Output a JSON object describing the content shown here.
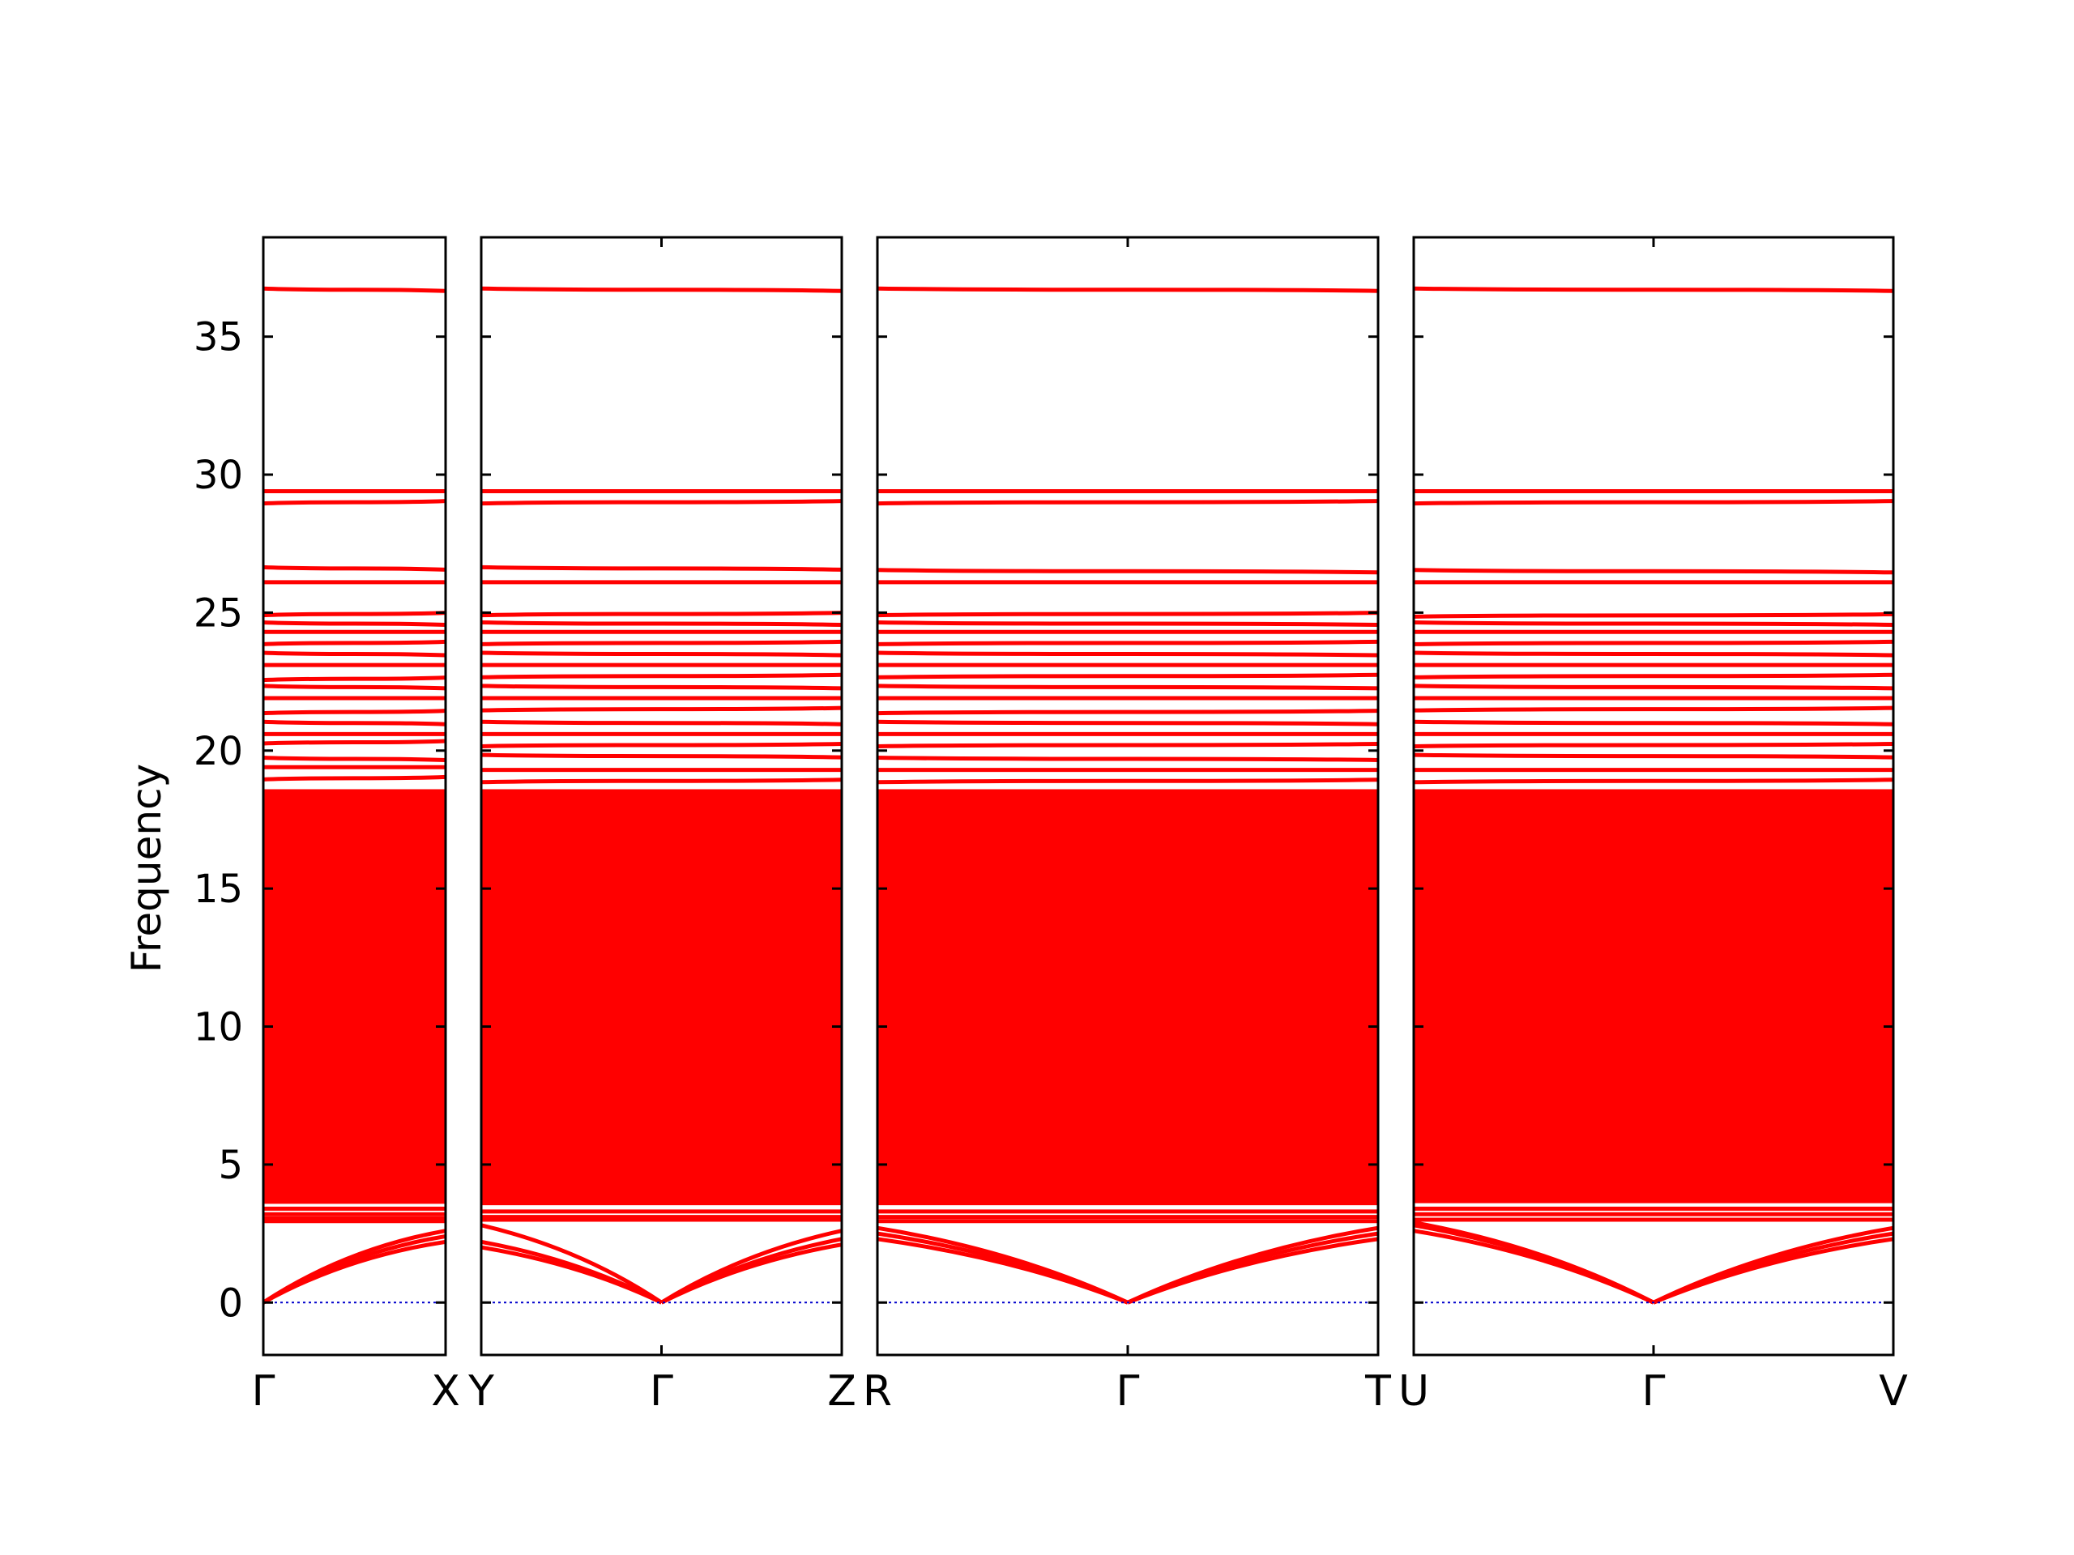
{
  "chart_data": {
    "type": "line",
    "ylabel": "Frequency",
    "xlabel": "",
    "title": "",
    "ylim": [
      -1.9,
      38.6
    ],
    "yticks": [
      0,
      5,
      10,
      15,
      20,
      25,
      30,
      35
    ],
    "grid": false,
    "band_color": "#ff0000",
    "zero_line_color": "#0000cc",
    "segments": [
      {
        "labels": [
          "Γ",
          "X"
        ],
        "branch_start": [
          0,
          0,
          0
        ],
        "branch_end": [
          2.2,
          2.4,
          2.6
        ],
        "low_flat": [
          2.95,
          3.05,
          3.2,
          3.4,
          3.65,
          3.9
        ],
        "dense_band": [
          3.6,
          18.6
        ],
        "upper_bands": [
          19.0,
          19.4,
          19.7,
          20.3,
          20.6,
          21.0,
          21.4,
          21.9,
          22.3,
          22.6,
          23.1,
          23.5,
          23.9,
          24.3,
          24.6,
          24.95,
          26.1,
          26.6,
          29.0,
          29.4,
          36.7
        ]
      },
      {
        "labels": [
          "Y",
          "Γ",
          "Z"
        ],
        "branch_start": [
          2.0,
          2.2,
          2.8
        ],
        "branch_mid": [
          0,
          0,
          0
        ],
        "branch_end": [
          2.1,
          2.3,
          2.6
        ],
        "low_flat": [
          3.0,
          3.1,
          3.3,
          3.6,
          3.9
        ],
        "dense_band": [
          3.6,
          18.6
        ],
        "upper_bands": [
          18.9,
          19.3,
          19.8,
          20.2,
          20.6,
          21.0,
          21.5,
          21.9,
          22.3,
          22.7,
          23.1,
          23.5,
          23.9,
          24.3,
          24.6,
          24.95,
          26.1,
          26.6,
          29.0,
          29.4,
          36.7
        ]
      },
      {
        "labels": [
          "R",
          "Γ",
          "T"
        ],
        "branch_start": [
          2.3,
          2.5,
          2.7
        ],
        "branch_mid": [
          0,
          0,
          0
        ],
        "branch_end": [
          2.3,
          2.5,
          2.7
        ],
        "low_flat": [
          2.95,
          3.1,
          3.3,
          3.6,
          3.9
        ],
        "dense_band": [
          3.6,
          18.6
        ],
        "upper_bands": [
          18.9,
          19.3,
          19.7,
          20.2,
          20.6,
          21.0,
          21.4,
          21.9,
          22.3,
          22.7,
          23.1,
          23.5,
          23.9,
          24.3,
          24.6,
          24.95,
          26.1,
          26.5,
          29.0,
          29.4,
          36.7
        ]
      },
      {
        "labels": [
          "U",
          "Γ",
          "V"
        ],
        "branch_start": [
          2.6,
          2.8,
          2.9
        ],
        "branch_mid": [
          0,
          0,
          0
        ],
        "branch_end": [
          2.3,
          2.5,
          2.7
        ],
        "low_flat": [
          3.0,
          3.2,
          3.4,
          3.7,
          4.1
        ],
        "dense_band": [
          3.6,
          18.6
        ],
        "upper_bands": [
          18.9,
          19.3,
          19.8,
          20.2,
          20.6,
          21.0,
          21.5,
          21.9,
          22.3,
          22.7,
          23.1,
          23.5,
          23.9,
          24.3,
          24.6,
          24.9,
          26.1,
          26.5,
          29.0,
          29.4,
          36.7
        ]
      }
    ]
  }
}
